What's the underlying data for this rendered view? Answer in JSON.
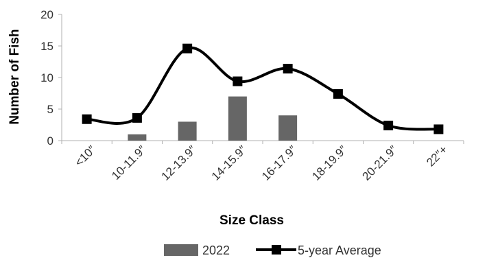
{
  "chart_data": {
    "type": "bar",
    "categories": [
      "<10″",
      "10-11.9″",
      "12-13.9″",
      "14-15.9″",
      "16-17.9″",
      "18-19.9″",
      "20-21.9″",
      "22″+"
    ],
    "series": [
      {
        "name": "2022",
        "kind": "bar",
        "color": "#666666",
        "values": [
          0,
          1,
          3,
          7,
          4,
          0,
          0,
          0
        ]
      },
      {
        "name": "5-year Average",
        "kind": "line",
        "smooth": true,
        "marker": "square",
        "color": "#000000",
        "values": [
          3.4,
          3.6,
          14.6,
          9.4,
          11.4,
          7.4,
          2.4,
          1.8
        ]
      }
    ],
    "xlabel": "Size Class",
    "ylabel": "Number of Fish",
    "ylim": [
      0,
      20
    ],
    "yticks": [
      0,
      5,
      10,
      15,
      20
    ],
    "grid": false,
    "legend": "bottom"
  }
}
